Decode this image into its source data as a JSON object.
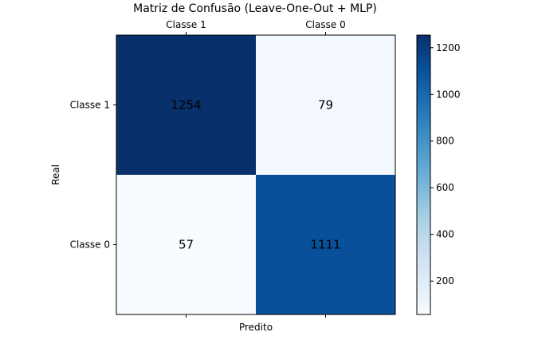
{
  "chart_data": {
    "type": "heatmap",
    "title": "Matriz de Confusão (Leave-One-Out + MLP)",
    "xlabel": "Predito",
    "ylabel": "Real",
    "x_categories": [
      "Classe 1",
      "Classe 0"
    ],
    "y_categories": [
      "Classe 1",
      "Classe 0"
    ],
    "values": [
      [
        1254,
        79
      ],
      [
        57,
        1111
      ]
    ],
    "colormap": "Blues",
    "colorbar": {
      "range": [
        57,
        1254
      ],
      "ticks": [
        200,
        400,
        600,
        800,
        1000,
        1200
      ]
    },
    "x_tick_position": "top-and-bottom",
    "grid": false
  }
}
